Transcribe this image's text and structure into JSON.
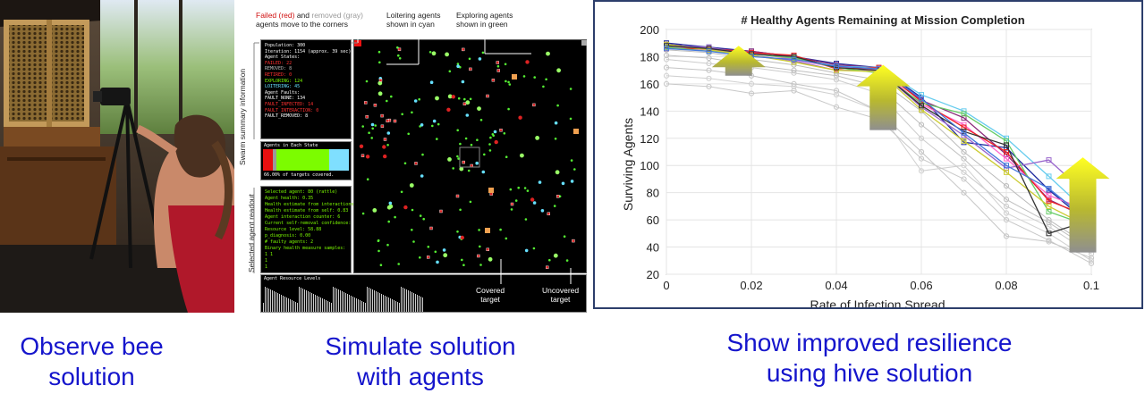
{
  "captions": {
    "observe": [
      "Observe bee",
      "solution"
    ],
    "simulate": [
      "Simulate solution",
      "with agents"
    ],
    "show": [
      "Show improved resilience",
      "using hive solution"
    ]
  },
  "simulation": {
    "annotation_failed": {
      "red": "Failed (red)",
      "mid": " and ",
      "gray": "removed (gray)",
      "line2": "agents move to the corners"
    },
    "annotation_loitering": [
      "Loitering agents",
      "shown in cyan"
    ],
    "annotation_exploring": [
      "Exploring agents",
      "shown in green"
    ],
    "side_label_summary": "Swarm summary information",
    "side_label_selected": "Selected agent readout",
    "summary_lines": [
      {
        "text": "Population: 300",
        "color": "#ffffff"
      },
      {
        "text": "Iteration: 1154 (approx. 39 sec)",
        "color": "#ffffff"
      },
      {
        "text": "Agent States:",
        "color": "#ffffff"
      },
      {
        "text": "FAILED: 22",
        "color": "#ff3030"
      },
      {
        "text": "REMOVED: 8",
        "color": "#bbbbbb"
      },
      {
        "text": "RETIRED: 0",
        "color": "#ff3030"
      },
      {
        "text": "EXPLORING: 124",
        "color": "#7CFC00"
      },
      {
        "text": "LOITERING: 45",
        "color": "#66e0ff"
      },
      {
        "text": "Agent Faults:",
        "color": "#ffffff"
      },
      {
        "text": "FAULT_NONE: 134",
        "color": "#ffffff"
      },
      {
        "text": "FAULT_INFECTED: 14",
        "color": "#ff3030"
      },
      {
        "text": "FAULT_INTERACTION: 0",
        "color": "#ff3030"
      },
      {
        "text": "FAULT_REMOVED: 8",
        "color": "#ffffff"
      }
    ],
    "agents_in_state_label": "Agents in Each State",
    "state_bar": [
      {
        "fraction": 0.11,
        "color": "#e81010"
      },
      {
        "fraction": 0.05,
        "color": "#9a9a9a"
      },
      {
        "fraction": 0.61,
        "color": "#7CFC00"
      },
      {
        "fraction": 0.23,
        "color": "#7fdfff"
      }
    ],
    "targets_covered_text": "66.00% of targets covered.",
    "selected_lines": [
      "Selected agent: 80 (rattle)",
      "Agent health: 0.35",
      "Health estimate from interactions: 1.00",
      "Health estimate from self: 0.83",
      "Agent interaction counter: 6",
      "Current self-removal confidence: 0.00",
      "Resource level: 58.88",
      "p_diagnosis: 0.00",
      "# faulty agents: 2",
      "Binary health measure samples:",
      "  1     1",
      "  1     ",
      "  1"
    ],
    "resource_label": "Agent Resource Levels",
    "covered_target": [
      "Covered",
      "target"
    ],
    "uncovered_target": [
      "Uncovered",
      "target"
    ]
  },
  "chart_data": {
    "type": "line",
    "title": "# Healthy Agents Remaining at Mission Completion",
    "xlabel": "Rate of Infection Spread",
    "ylabel": "Surviving Agents",
    "xlim": [
      0,
      0.1
    ],
    "ylim": [
      20,
      200
    ],
    "xticks": [
      0,
      0.02,
      0.04,
      0.06,
      0.08,
      0.1
    ],
    "yticks": [
      20,
      40,
      60,
      80,
      100,
      120,
      140,
      160,
      180,
      200
    ],
    "grid": true,
    "x": [
      0,
      0.01,
      0.02,
      0.03,
      0.04,
      0.05,
      0.06,
      0.07,
      0.08,
      0.09,
      0.1
    ],
    "series_improved": [
      {
        "color": "#1f2a9e",
        "values": [
          190,
          187,
          184,
          180,
          175,
          172,
          150,
          117,
          113,
          82,
          56
        ]
      },
      {
        "color": "#8a2a7a",
        "values": [
          189,
          186,
          184,
          180,
          174,
          172,
          148,
          135,
          108,
          75,
          60
        ]
      },
      {
        "color": "#66ccee",
        "values": [
          188,
          185,
          182,
          179,
          173,
          172,
          152,
          140,
          120,
          92,
          63
        ]
      },
      {
        "color": "#ff66cc",
        "values": [
          187,
          185,
          183,
          178,
          172,
          171,
          145,
          130,
          105,
          78,
          66
        ]
      },
      {
        "color": "#ee2222",
        "values": [
          186,
          186,
          183,
          181,
          171,
          172,
          147,
          128,
          110,
          74,
          62
        ]
      },
      {
        "color": "#9966cc",
        "values": [
          188,
          187,
          181,
          177,
          170,
          170,
          143,
          122,
          98,
          104,
          76
        ]
      },
      {
        "color": "#66cc66",
        "values": [
          187,
          184,
          182,
          179,
          172,
          168,
          146,
          138,
          118,
          66,
          55
        ]
      },
      {
        "color": "#cccc33",
        "values": [
          189,
          185,
          181,
          176,
          170,
          169,
          141,
          118,
          95,
          70,
          54
        ]
      },
      {
        "color": "#333333",
        "values": [
          188,
          186,
          182,
          180,
          172,
          170,
          144,
          125,
          115,
          50,
          60
        ]
      },
      {
        "color": "#4477dd",
        "values": [
          186,
          184,
          180,
          178,
          173,
          171,
          149,
          124,
          100,
          83,
          58
        ]
      }
    ],
    "series_baseline": [
      {
        "color": "#bbbbbb",
        "values": [
          185,
          183,
          178,
          174,
          168,
          163,
          140,
          110,
          85,
          60,
          40
        ]
      },
      {
        "color": "#cccccc",
        "values": [
          178,
          175,
          172,
          168,
          163,
          153,
          120,
          95,
          70,
          55,
          35
        ]
      },
      {
        "color": "#c4c4c4",
        "values": [
          172,
          170,
          166,
          160,
          155,
          140,
          110,
          80,
          48,
          44,
          32
        ]
      },
      {
        "color": "#d0d0d0",
        "values": [
          166,
          164,
          160,
          158,
          152,
          140,
          96,
          100,
          65,
          50,
          30
        ]
      },
      {
        "color": "#c8c8c8",
        "values": [
          160,
          158,
          153,
          155,
          143,
          134,
          105,
          90,
          60,
          45,
          28
        ]
      },
      {
        "color": "#bfbfbf",
        "values": [
          181,
          179,
          174,
          170,
          166,
          158,
          130,
          105,
          75,
          58,
          38
        ]
      }
    ],
    "arrows": [
      {
        "x": 0.017,
        "y_bottom": 166,
        "y_top": 188
      },
      {
        "x": 0.051,
        "y_bottom": 126,
        "y_top": 174
      },
      {
        "x": 0.098,
        "y_bottom": 36,
        "y_top": 106
      }
    ]
  }
}
